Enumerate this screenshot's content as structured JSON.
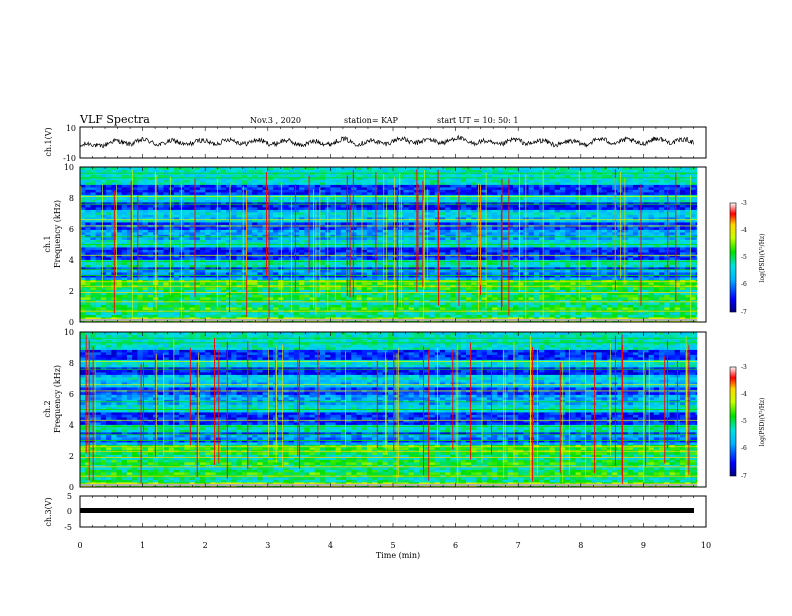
{
  "header": {
    "title": "VLF Spectra",
    "date": "Nov.3 , 2020",
    "station": "station= KAP",
    "start": "start UT = 10: 50: 1"
  },
  "chart_data": {
    "type": "heatmap",
    "xlabel": "Time (min)",
    "xlim": [
      0,
      10
    ],
    "x_ticks": [
      "0",
      "1",
      "2",
      "3",
      "4",
      "5",
      "6",
      "7",
      "8",
      "9",
      "10"
    ],
    "panels": [
      {
        "id": "ch1-waveform",
        "type": "line",
        "ylabel": "ch.1(V)",
        "ylim": [
          -10,
          10
        ],
        "y_ticks": [
          "10",
          "-10"
        ],
        "color": "#000000",
        "y_approx": [
          -1.5,
          0.8,
          1.8,
          1.0,
          1.2,
          2.0,
          1.5,
          1.3,
          0.5,
          2.2,
          1.0,
          2.5,
          1.8,
          3.0,
          0.5,
          2.0,
          1.0,
          0.8,
          2.5,
          1.5,
          2.8,
          1.5
        ]
      },
      {
        "id": "ch1-spectrogram",
        "type": "heatmap",
        "ylabel": "Frequency (kHz)",
        "channel_label": "ch.1",
        "ylim": [
          0,
          10
        ],
        "y_ticks": [
          "0",
          "2",
          "4",
          "6",
          "8",
          "10"
        ],
        "colorbar": {
          "label": "log(PSD)(V²/Hz)",
          "range": [
            -7,
            -3
          ],
          "ticks": [
            "-3",
            "-4",
            "-5",
            "-6",
            "-7"
          ]
        }
      },
      {
        "id": "ch2-spectrogram",
        "type": "heatmap",
        "ylabel": "Frequency (kHz)",
        "channel_label": "ch.2",
        "ylim": [
          0,
          10
        ],
        "y_ticks": [
          "0",
          "2",
          "4",
          "6",
          "8",
          "10"
        ],
        "colorbar": {
          "label": "log(PSD)(V²/Hz)",
          "range": [
            -7,
            -3
          ],
          "ticks": [
            "-3",
            "-4",
            "-5",
            "-6",
            "-7"
          ]
        }
      },
      {
        "id": "ch3-waveform",
        "type": "line",
        "ylabel": "ch.3(V)",
        "ylim": [
          -5,
          5
        ],
        "y_ticks": [
          "5",
          "0",
          "-5"
        ],
        "color": "#000000",
        "y_approx": [
          0,
          0
        ]
      }
    ]
  }
}
